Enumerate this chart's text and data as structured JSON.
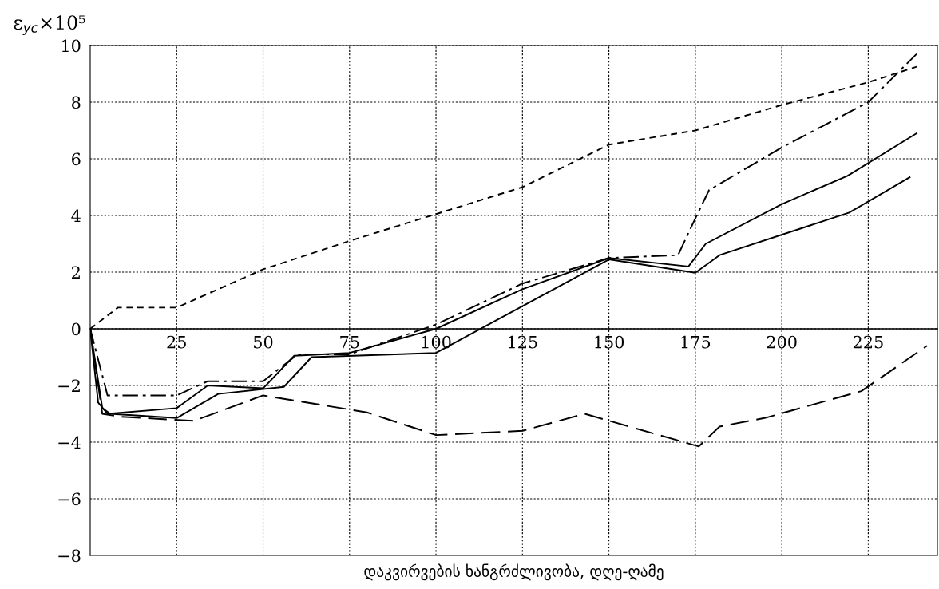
{
  "chart_data": {
    "type": "line",
    "ylabel": "ε$_{ус}$×10⁵",
    "xlabel": "დაკვირვების ხანგრძლივობა, დღე-ღამე",
    "xlim": [
      0,
      245
    ],
    "xticks": [
      25,
      50,
      75,
      100,
      125,
      150,
      175,
      200,
      225
    ],
    "ylim": [
      -8,
      10
    ],
    "yticks": [
      {
        "value": -8,
        "label": "−8"
      },
      {
        "value": -6,
        "label": "−6"
      },
      {
        "value": -4,
        "label": "−4"
      },
      {
        "value": -2,
        "label": "−2"
      },
      0,
      2,
      4,
      6,
      8,
      10
    ],
    "grid": true,
    "marker": "none",
    "series": [
      {
        "color": "#000000",
        "line_style": "dashed",
        "x": [
          0,
          8,
          25,
          50,
          75,
          100,
          125,
          150,
          175,
          200,
          225,
          239
        ],
        "values": [
          0,
          0.75,
          0.75,
          2.1,
          3.1,
          4.05,
          5.0,
          6.5,
          7.0,
          7.9,
          8.7,
          9.25
        ]
      },
      {
        "color": "#000000",
        "line_style": "dashdot",
        "x": [
          0,
          5,
          25,
          34,
          50,
          60,
          75,
          100,
          125,
          150,
          170,
          175,
          179,
          200,
          225,
          239
        ],
        "values": [
          0,
          -2.35,
          -2.35,
          -1.85,
          -1.85,
          -0.9,
          -0.9,
          0.15,
          1.6,
          2.5,
          2.6,
          3.9,
          4.9,
          6.4,
          8.0,
          9.7
        ]
      },
      {
        "color": "#000000",
        "line_style": "solid",
        "x": [
          0,
          2.3,
          5,
          25,
          34,
          50,
          59,
          75,
          100,
          125,
          150,
          173,
          178,
          200,
          219,
          239
        ],
        "values": [
          0,
          -2.6,
          -3.0,
          -2.8,
          -2.0,
          -2.1,
          -0.95,
          -0.85,
          0,
          1.4,
          2.5,
          2.2,
          3.0,
          4.4,
          5.4,
          6.9
        ]
      },
      {
        "color": "#000000",
        "line_style": "solid",
        "x": [
          0,
          3.5,
          5.8,
          25,
          37,
          56,
          64,
          100,
          150,
          175,
          182,
          219.5,
          237
        ],
        "values": [
          0,
          -2.8,
          -3.0,
          -3.15,
          -2.3,
          -2.05,
          -1.0,
          -0.85,
          2.45,
          1.98,
          2.6,
          4.1,
          5.35
        ]
      },
      {
        "color": "#000000",
        "line_style": "longdash",
        "x": [
          0,
          3.5,
          8.5,
          30,
          50,
          80,
          100,
          125,
          143,
          176,
          182,
          195,
          223,
          242
        ],
        "values": [
          0,
          -3.0,
          -3.1,
          -3.25,
          -2.35,
          -2.95,
          -3.75,
          -3.6,
          -3.0,
          -4.15,
          -3.45,
          -3.15,
          -2.2,
          -0.6
        ]
      }
    ]
  }
}
